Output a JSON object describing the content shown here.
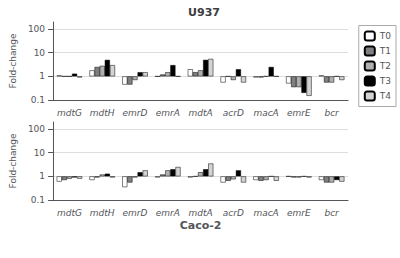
{
  "chart_data": [
    {
      "type": "bar",
      "title": "U937",
      "ylabel": "Fold-change",
      "categories": [
        "mdtG",
        "mdtH",
        "emrD",
        "emrA",
        "mdtA",
        "acrD",
        "macA",
        "emrE",
        "bcr"
      ],
      "series": [
        {
          "name": "T0",
          "color": "#ffffff",
          "values": [
            1.1,
            1.8,
            0.45,
            1.0,
            2.0,
            0.55,
            0.9,
            0.5,
            1.1
          ]
        },
        {
          "name": "T1",
          "color": "#808080",
          "values": [
            1.0,
            2.5,
            0.45,
            1.2,
            1.5,
            1.0,
            0.9,
            0.35,
            0.55
          ]
        },
        {
          "name": "T2",
          "color": "#b0b0b0",
          "values": [
            1.0,
            2.8,
            0.7,
            1.5,
            1.8,
            0.7,
            1.0,
            0.35,
            0.55
          ]
        },
        {
          "name": "T3",
          "color": "#000000",
          "values": [
            1.3,
            5.0,
            1.5,
            3.0,
            5.0,
            2.0,
            2.5,
            0.2,
            1.0
          ]
        },
        {
          "name": "T4",
          "color": "#d3d3d3",
          "values": [
            0.9,
            3.0,
            1.5,
            1.0,
            5.5,
            0.55,
            1.0,
            0.15,
            0.7
          ]
        }
      ],
      "ylim": [
        0.1,
        200
      ],
      "yticks": [
        0.1,
        1,
        10,
        100
      ],
      "log": "y",
      "grid": true,
      "legend": "right"
    },
    {
      "type": "bar",
      "xlabel": "Caco-2",
      "ylabel": "Fold-change",
      "categories": [
        "mdtG",
        "mdtH",
        "emrD",
        "emrA",
        "mdtA",
        "acrD",
        "macA",
        "emrE",
        "bcr"
      ],
      "series": [
        {
          "name": "T0",
          "color": "#ffffff",
          "values": [
            0.6,
            0.7,
            0.35,
            0.9,
            0.9,
            0.55,
            0.7,
            1.0,
            0.7
          ]
        },
        {
          "name": "T1",
          "color": "#808080",
          "values": [
            0.7,
            0.9,
            0.55,
            1.2,
            1.0,
            0.65,
            0.65,
            0.9,
            0.55
          ]
        },
        {
          "name": "T2",
          "color": "#b0b0b0",
          "values": [
            0.8,
            1.2,
            0.9,
            1.8,
            1.5,
            0.75,
            0.7,
            0.9,
            0.55
          ]
        },
        {
          "name": "T3",
          "color": "#000000",
          "values": [
            0.9,
            1.3,
            1.5,
            2.0,
            2.0,
            1.8,
            1.0,
            1.0,
            0.7
          ]
        },
        {
          "name": "T4",
          "color": "#d3d3d3",
          "values": [
            0.8,
            0.9,
            1.8,
            2.5,
            3.5,
            0.55,
            0.65,
            0.9,
            0.6
          ]
        }
      ],
      "ylim": [
        0.1,
        200
      ],
      "yticks": [
        0.1,
        1,
        10,
        100
      ],
      "log": "y",
      "grid": true
    }
  ]
}
